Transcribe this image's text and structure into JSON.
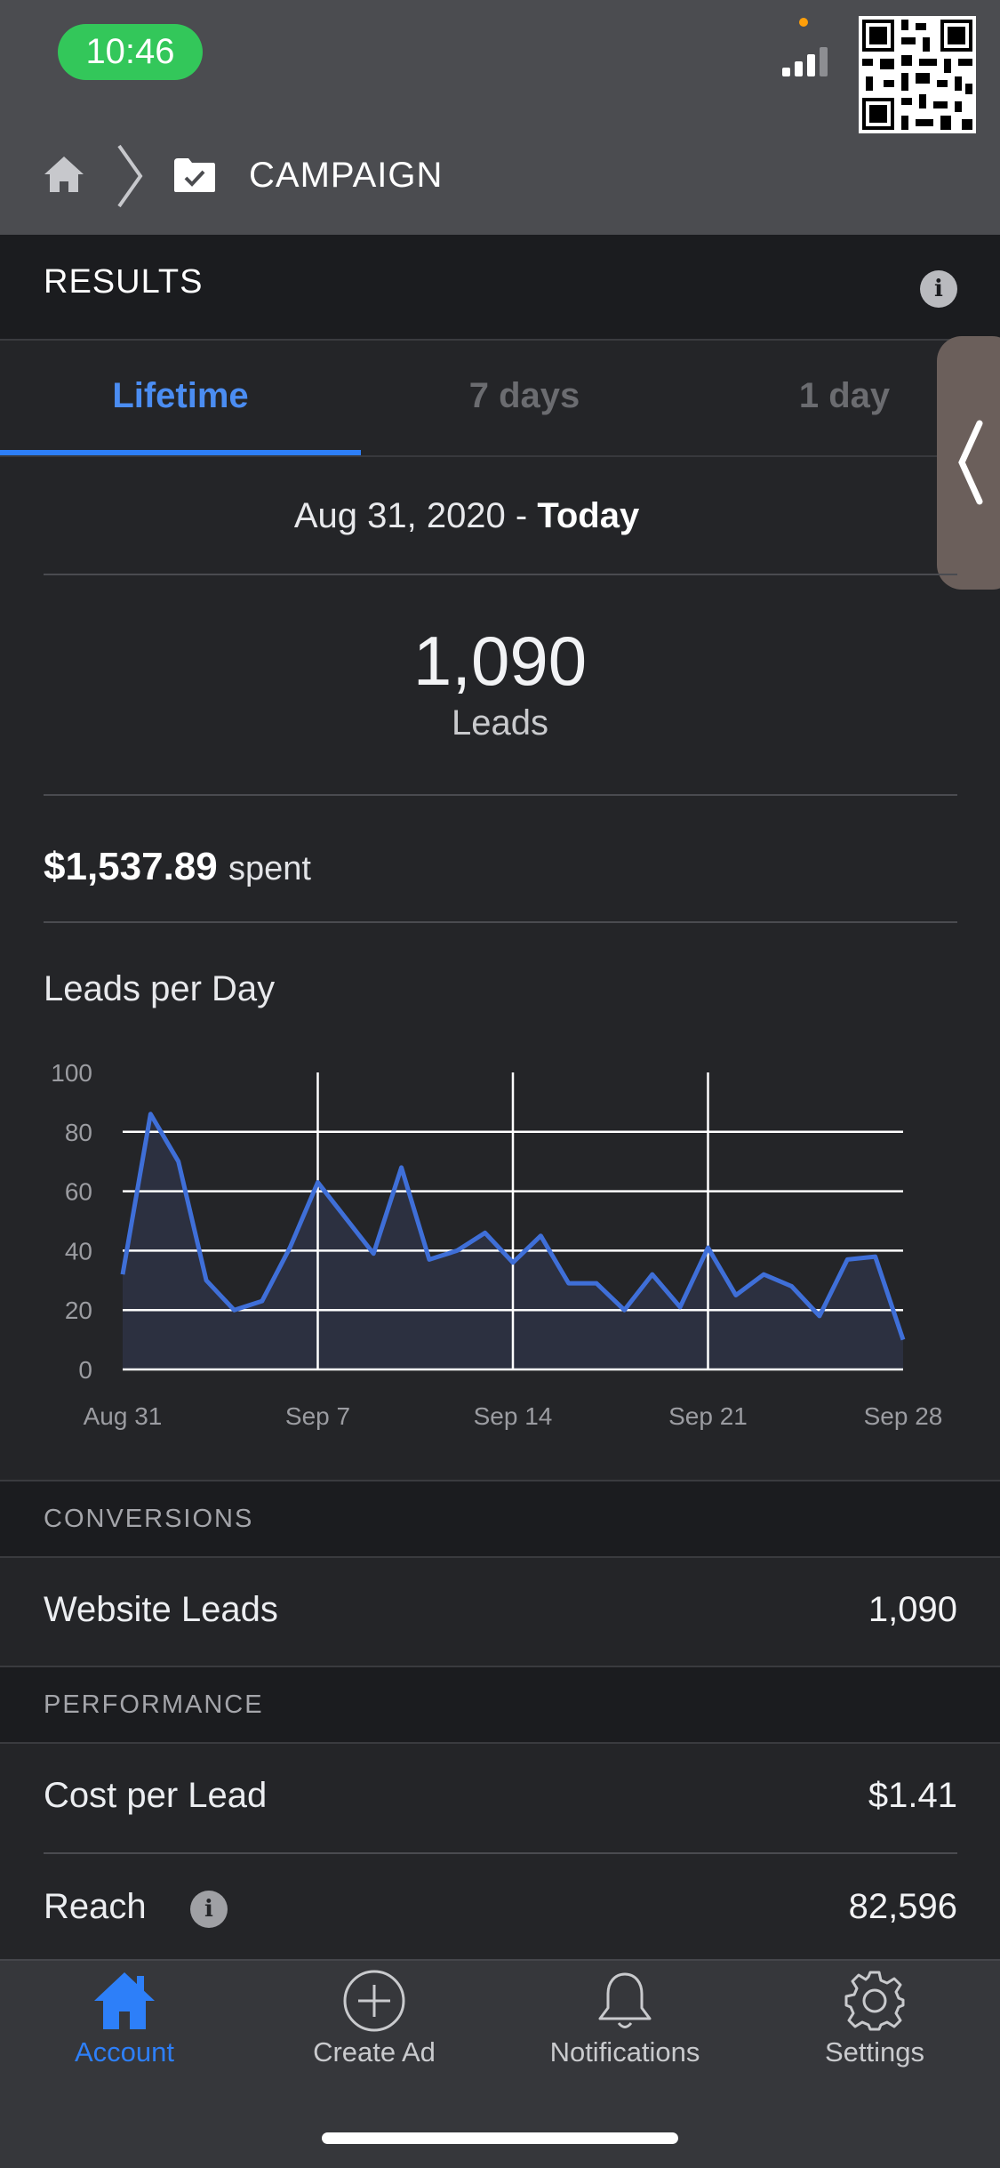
{
  "status_bar": {
    "time": "10:46"
  },
  "header": {
    "breadcrumb_title": "CAMPAIGN"
  },
  "results": {
    "title": "RESULTS",
    "info_glyph": "i"
  },
  "tabs": [
    {
      "label": "Lifetime",
      "active": true
    },
    {
      "label": "7 days",
      "active": false
    },
    {
      "label": "1 day",
      "active": false
    }
  ],
  "date_range": {
    "start": "Aug 31, 2020 - ",
    "end": "Today"
  },
  "summary": {
    "value": "1,090",
    "label": "Leads"
  },
  "spend": {
    "amount": "$1,537.89",
    "label": "spent"
  },
  "chart_title": "Leads per Day",
  "chart_data": {
    "type": "area",
    "title": "Leads per Day",
    "xlabel": "",
    "ylabel": "",
    "ylim": [
      0,
      100
    ],
    "yticks": [
      0,
      20,
      40,
      60,
      80,
      100
    ],
    "xtick_labels": [
      "Aug 31",
      "Sep 7",
      "Sep 14",
      "Sep 21",
      "Sep 28"
    ],
    "x_day_index": [
      0,
      1,
      2,
      3,
      4,
      5,
      6,
      7,
      8,
      9,
      10,
      11,
      12,
      13,
      14,
      15,
      16,
      17,
      18,
      19,
      20,
      21,
      22,
      23,
      24,
      25,
      26,
      27,
      28
    ],
    "values": [
      32,
      86,
      70,
      30,
      20,
      23,
      41,
      63,
      51,
      39,
      68,
      37,
      40,
      46,
      36,
      45,
      29,
      29,
      20,
      32,
      21,
      41,
      25,
      32,
      28,
      18,
      37,
      38,
      10
    ],
    "grid": true,
    "color": "#3f6fd8"
  },
  "conversions": {
    "section_title": "CONVERSIONS",
    "rows": [
      {
        "label": "Website Leads",
        "value": "1,090"
      }
    ]
  },
  "performance": {
    "section_title": "PERFORMANCE",
    "rows": [
      {
        "label": "Cost per Lead",
        "value": "$1.41"
      },
      {
        "label": "Reach",
        "value": "82,596"
      }
    ]
  },
  "tabbar": {
    "items": [
      {
        "label": "Account",
        "icon": "home-icon",
        "active": true
      },
      {
        "label": "Create Ad",
        "icon": "plus-circle-icon",
        "active": false
      },
      {
        "label": "Notifications",
        "icon": "bell-icon",
        "active": false
      },
      {
        "label": "Settings",
        "icon": "gear-icon",
        "active": false
      }
    ]
  },
  "colors": {
    "accent": "#2d7ff9",
    "background": "#242528",
    "header": "#4b4c50",
    "time_pill": "#33c75a"
  }
}
